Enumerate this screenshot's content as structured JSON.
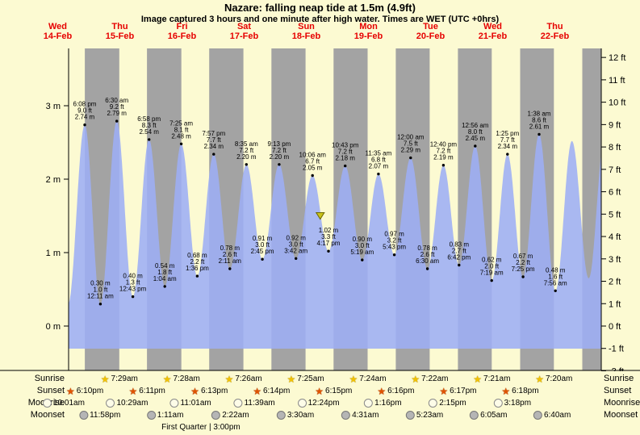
{
  "title": "Nazare: falling  neap tide at 1.5m (4.9ft)",
  "subtitle": "Image captured 3 hours and one minute after high water. Times are WET (UTC +0hrs)",
  "colors": {
    "background": "#fcfad2",
    "night_band": "#a3a3a3",
    "tide_fill": "#9daef5",
    "day_label": "#e60000",
    "marker": "#c9c21b",
    "axis": "#000000"
  },
  "chart_data": {
    "type": "area",
    "title": "Tide height curve, Nazare, 14-22 Feb",
    "x_days": [
      {
        "name": "Wed",
        "date": "14-Feb"
      },
      {
        "name": "Thu",
        "date": "15-Feb"
      },
      {
        "name": "Fri",
        "date": "16-Feb"
      },
      {
        "name": "Sat",
        "date": "17-Feb"
      },
      {
        "name": "Sun",
        "date": "18-Feb"
      },
      {
        "name": "Mon",
        "date": "19-Feb"
      },
      {
        "name": "Tue",
        "date": "20-Feb"
      },
      {
        "name": "Wed",
        "date": "21-Feb"
      },
      {
        "name": "Thu",
        "date": "22-Feb"
      }
    ],
    "y_left_unit": "m",
    "y_right_unit": "ft",
    "y_left_ticks_m": [
      3,
      2,
      1,
      0
    ],
    "y_right_ticks_ft": [
      12,
      11,
      10,
      9,
      8,
      7,
      6,
      5,
      4,
      3,
      2,
      1,
      0,
      -1,
      -2
    ],
    "ylim_m": [
      -0.61,
      3.66
    ],
    "tides": [
      {
        "day": 0,
        "time": "6:08 pm",
        "type": "high",
        "height_m": 2.74,
        "height_ft": 9.0
      },
      {
        "day": 1,
        "time": "12:11 am",
        "type": "low",
        "height_m": 0.3,
        "height_ft": 1.0
      },
      {
        "day": 1,
        "time": "6:30 am",
        "type": "high",
        "height_m": 2.79,
        "height_ft": 9.2
      },
      {
        "day": 1,
        "time": "12:43 pm",
        "type": "low",
        "height_m": 0.4,
        "height_ft": 1.3
      },
      {
        "day": 1,
        "time": "6:58 pm",
        "type": "high",
        "height_m": 2.54,
        "height_ft": 8.3
      },
      {
        "day": 2,
        "time": "1:04 am",
        "type": "low",
        "height_m": 0.54,
        "height_ft": 1.8
      },
      {
        "day": 2,
        "time": "7:25 am",
        "type": "high",
        "height_m": 2.48,
        "height_ft": 8.1
      },
      {
        "day": 2,
        "time": "1:36 pm",
        "type": "low",
        "height_m": 0.68,
        "height_ft": 2.2
      },
      {
        "day": 2,
        "time": "7:57 pm",
        "type": "high",
        "height_m": 2.34,
        "height_ft": 7.7
      },
      {
        "day": 3,
        "time": "2:11 am",
        "type": "low",
        "height_m": 0.78,
        "height_ft": 2.6
      },
      {
        "day": 3,
        "time": "8:35 am",
        "type": "high",
        "height_m": 2.2,
        "height_ft": 7.2
      },
      {
        "day": 3,
        "time": "2:45 pm",
        "type": "low",
        "height_m": 0.91,
        "height_ft": 3.0
      },
      {
        "day": 3,
        "time": "9:13 pm",
        "type": "high",
        "height_m": 2.2,
        "height_ft": 7.2
      },
      {
        "day": 4,
        "time": "3:42 am",
        "type": "low",
        "height_m": 0.92,
        "height_ft": 3.0
      },
      {
        "day": 4,
        "time": "10:06 am",
        "type": "high",
        "height_m": 2.05,
        "height_ft": 6.7
      },
      {
        "day": 4,
        "time": "4:17 pm",
        "type": "low",
        "height_m": 1.02,
        "height_ft": 3.3
      },
      {
        "day": 4,
        "time": "10:43 pm",
        "type": "high",
        "height_m": 2.18,
        "height_ft": 7.2
      },
      {
        "day": 5,
        "time": "5:19 am",
        "type": "low",
        "height_m": 0.9,
        "height_ft": 3.0
      },
      {
        "day": 5,
        "time": "11:35 am",
        "type": "high",
        "height_m": 2.07,
        "height_ft": 6.8
      },
      {
        "day": 5,
        "time": "5:43 pm",
        "type": "low",
        "height_m": 0.97,
        "height_ft": 3.2
      },
      {
        "day": 6,
        "time": "12:00 am",
        "type": "high",
        "height_m": 2.29,
        "height_ft": 7.5
      },
      {
        "day": 6,
        "time": "6:30 am",
        "type": "low",
        "height_m": 0.78,
        "height_ft": 2.6
      },
      {
        "day": 6,
        "time": "12:40 pm",
        "type": "high",
        "height_m": 2.19,
        "height_ft": 7.2
      },
      {
        "day": 6,
        "time": "6:42 pm",
        "type": "low",
        "height_m": 0.83,
        "height_ft": 2.7
      },
      {
        "day": 7,
        "time": "12:56 am",
        "type": "high",
        "height_m": 2.45,
        "height_ft": 8.0
      },
      {
        "day": 7,
        "time": "7:19 am",
        "type": "low",
        "height_m": 0.62,
        "height_ft": 2.0
      },
      {
        "day": 7,
        "time": "1:25 pm",
        "type": "high",
        "height_m": 2.34,
        "height_ft": 7.7
      },
      {
        "day": 7,
        "time": "7:25 pm",
        "type": "low",
        "height_m": 0.67,
        "height_ft": 2.2
      },
      {
        "day": 8,
        "time": "1:38 am",
        "type": "high",
        "height_m": 2.61,
        "height_ft": 8.6
      },
      {
        "day": 8,
        "time": "7:56 am",
        "type": "low",
        "height_m": 0.48,
        "height_ft": 1.6
      }
    ],
    "current_marker": {
      "day": 4,
      "hour": 13.1,
      "height_m": 1.5
    },
    "extrapolation": {
      "before": [
        {
          "day": 0,
          "hour": 11.7,
          "height_m": 0.3
        }
      ],
      "after": [
        {
          "day": 8,
          "hour": 14.3,
          "height_m": 2.52
        },
        {
          "day": 8,
          "hour": 20.8,
          "height_m": 0.65
        },
        {
          "day": 9,
          "hour": 2.9,
          "height_m": 2.55
        }
      ]
    }
  },
  "sun_moon": {
    "rows": [
      {
        "id": "sunrise",
        "label": "Sunrise",
        "entries": [
          {
            "day": 1,
            "time": "7:29am"
          },
          {
            "day": 2,
            "time": "7:28am"
          },
          {
            "day": 3,
            "time": "7:26am"
          },
          {
            "day": 4,
            "time": "7:25am"
          },
          {
            "day": 5,
            "time": "7:24am"
          },
          {
            "day": 6,
            "time": "7:22am"
          },
          {
            "day": 7,
            "time": "7:21am"
          },
          {
            "day": 8,
            "time": "7:20am"
          }
        ]
      },
      {
        "id": "sunset",
        "label": "Sunset",
        "entries": [
          {
            "day": 0,
            "time": "6:10pm"
          },
          {
            "day": 1,
            "time": "6:11pm"
          },
          {
            "day": 2,
            "time": "6:13pm"
          },
          {
            "day": 3,
            "time": "6:14pm"
          },
          {
            "day": 4,
            "time": "6:15pm"
          },
          {
            "day": 5,
            "time": "6:16pm"
          },
          {
            "day": 6,
            "time": "6:17pm"
          },
          {
            "day": 7,
            "time": "6:18pm"
          }
        ]
      },
      {
        "id": "moonrise",
        "label": "Moonrise",
        "entries": [
          {
            "day": 0,
            "time": "10:01am"
          },
          {
            "day": 1,
            "time": "10:29am"
          },
          {
            "day": 2,
            "time": "11:01am"
          },
          {
            "day": 3,
            "time": "11:39am"
          },
          {
            "day": 4,
            "time": "12:24pm"
          },
          {
            "day": 5,
            "time": "1:16pm"
          },
          {
            "day": 6,
            "time": "2:15pm"
          },
          {
            "day": 7,
            "time": "3:18pm"
          }
        ]
      },
      {
        "id": "moonset",
        "label": "Moonset",
        "entries": [
          {
            "day": 0,
            "time": "11:58pm"
          },
          {
            "day": 2,
            "time": "1:11am"
          },
          {
            "day": 3,
            "time": "2:22am"
          },
          {
            "day": 4,
            "time": "3:30am"
          },
          {
            "day": 5,
            "time": "4:31am"
          },
          {
            "day": 6,
            "time": "5:23am"
          },
          {
            "day": 7,
            "time": "6:05am"
          },
          {
            "day": 8,
            "time": "6:40am"
          }
        ]
      }
    ],
    "moon_phase": {
      "label": "First Quarter | 3:00pm",
      "day": 2,
      "hour": 15
    }
  }
}
